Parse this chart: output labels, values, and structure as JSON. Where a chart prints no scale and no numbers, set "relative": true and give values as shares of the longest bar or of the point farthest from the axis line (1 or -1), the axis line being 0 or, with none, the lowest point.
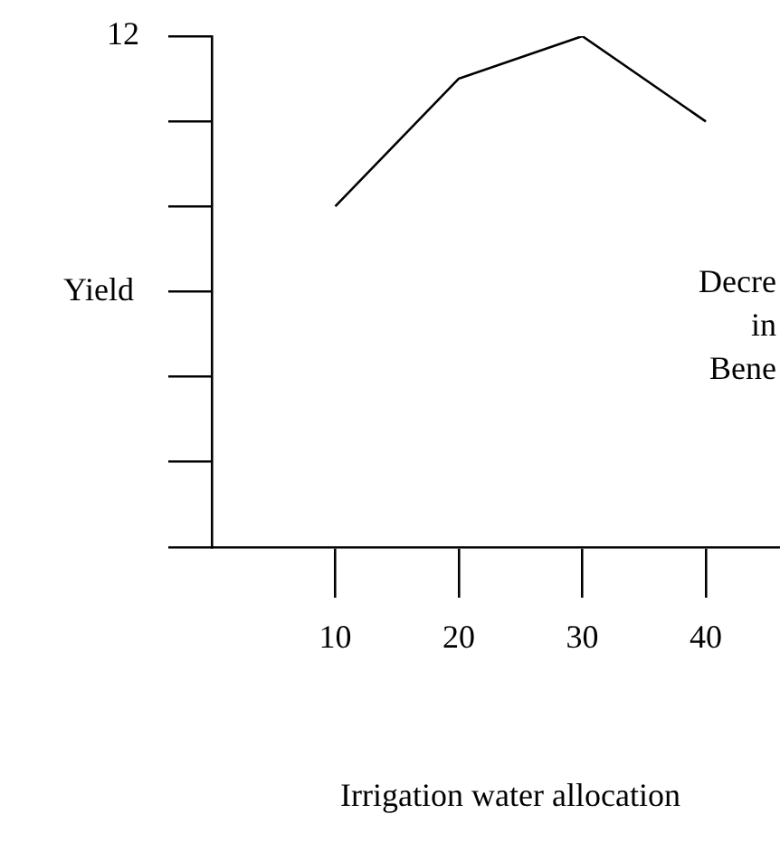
{
  "chart_data": {
    "type": "line",
    "relative": true,
    "xlabel": "Irrigation water allocation",
    "ylabel": "Yield",
    "x": [
      10,
      20,
      30,
      40
    ],
    "xlim": [
      0,
      46
    ],
    "xticks": [
      10,
      20,
      30,
      40
    ],
    "series": [
      {
        "color": "#000000",
        "values": [
          0.667,
          0.917,
          1,
          0.833
        ]
      }
    ],
    "annotations": [
      "12",
      "Decre",
      "in",
      "Bene"
    ],
    "grid": false,
    "legend": false,
    "marker": "none",
    "line_style": "solid"
  }
}
